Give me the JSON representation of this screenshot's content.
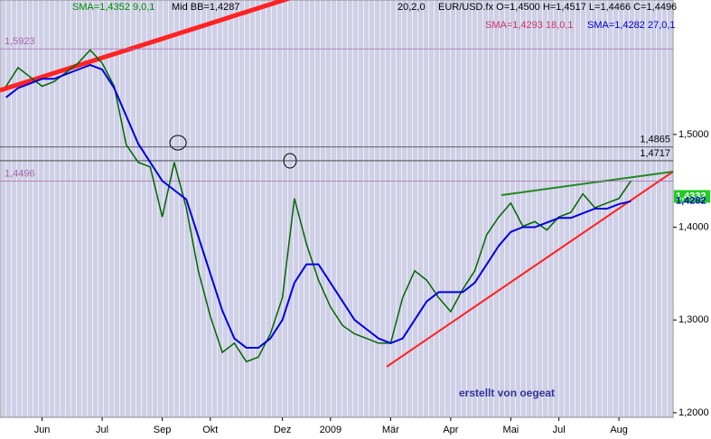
{
  "chart_data": {
    "type": "line",
    "title": "EUR/USD.fx O=1,4500 H=1,4517 L=1,4466 C=1,4496",
    "indicators": [
      "SMA=1,4352  9,0,1",
      "Mid BB=1,4287",
      "20,2,0",
      "SMA=1,4293 18,0,1",
      "SMA=1,4282 27,0,1"
    ],
    "annotation": "erstellt von oegeat",
    "categories": [
      null,
      null,
      null,
      "Jun",
      null,
      null,
      null,
      null,
      "Jul",
      null,
      null,
      null,
      null,
      "Sep",
      null,
      null,
      null,
      "Okt",
      null,
      null,
      null,
      null,
      null,
      "Dez",
      null,
      null,
      null,
      "2009",
      null,
      null,
      null,
      null,
      "Mär",
      null,
      null,
      null,
      null,
      "Apr",
      null,
      null,
      null,
      null,
      "Mai",
      null,
      null,
      null,
      "Jul",
      null,
      null,
      null,
      null,
      "Aug",
      null,
      null,
      null,
      null
    ],
    "series": [
      {
        "name": "EUR/USD.fx",
        "color": "#006600",
        "values": [
          1.552,
          1.572,
          1.562,
          1.552,
          1.557,
          1.567,
          1.577,
          1.591,
          1.577,
          1.552,
          1.489,
          1.47,
          1.465,
          1.411,
          1.47,
          1.421,
          1.353,
          1.304,
          1.265,
          1.275,
          1.255,
          1.26,
          1.285,
          1.324,
          1.431,
          1.382,
          1.343,
          1.314,
          1.294,
          1.285,
          1.28,
          1.275,
          1.275,
          1.324,
          1.353,
          1.343,
          1.324,
          1.309,
          1.333,
          1.353,
          1.392,
          1.411,
          1.426,
          1.401,
          1.406,
          1.397,
          1.411,
          1.416,
          1.436,
          1.421,
          1.426,
          1.431,
          1.45,
          null,
          null,
          null
        ]
      },
      {
        "name": "SMA 27",
        "color": "#0000dd",
        "values": [
          1.54,
          1.55,
          1.555,
          1.56,
          1.56,
          1.565,
          1.57,
          1.575,
          1.57,
          1.55,
          1.52,
          1.49,
          1.47,
          1.45,
          1.44,
          1.43,
          1.39,
          1.35,
          1.31,
          1.28,
          1.27,
          1.27,
          1.28,
          1.3,
          1.34,
          1.36,
          1.36,
          1.34,
          1.32,
          1.3,
          1.29,
          1.28,
          1.275,
          1.28,
          1.3,
          1.32,
          1.33,
          1.33,
          1.33,
          1.34,
          1.36,
          1.38,
          1.395,
          1.4,
          1.4,
          1.405,
          1.41,
          1.41,
          1.415,
          1.42,
          1.42,
          1.425,
          1.428,
          null,
          null,
          null
        ]
      }
    ],
    "ylim": [
      1.195,
      1.645
    ],
    "yticks": [
      {
        "value": 1.2,
        "label": "1,2000"
      },
      {
        "value": 1.3,
        "label": "1,3000"
      },
      {
        "value": 1.4,
        "label": "1,4000"
      },
      {
        "value": 1.5,
        "label": "1,5000"
      }
    ],
    "levels": [
      {
        "value": 1.5923,
        "label": "1,5923",
        "align": "left"
      },
      {
        "value": 1.4865,
        "label": "1,4865",
        "align": "right"
      },
      {
        "value": 1.4717,
        "label": "1,4717",
        "align": "right"
      },
      {
        "value": 1.4496,
        "label": "1,4496",
        "align": "left"
      }
    ],
    "price_labels": [
      {
        "value": 1.4332,
        "label": "1,4332",
        "color": "#22cc22"
      },
      {
        "value": 1.4282,
        "label": "1,4282",
        "color": "#0000cc"
      }
    ]
  }
}
